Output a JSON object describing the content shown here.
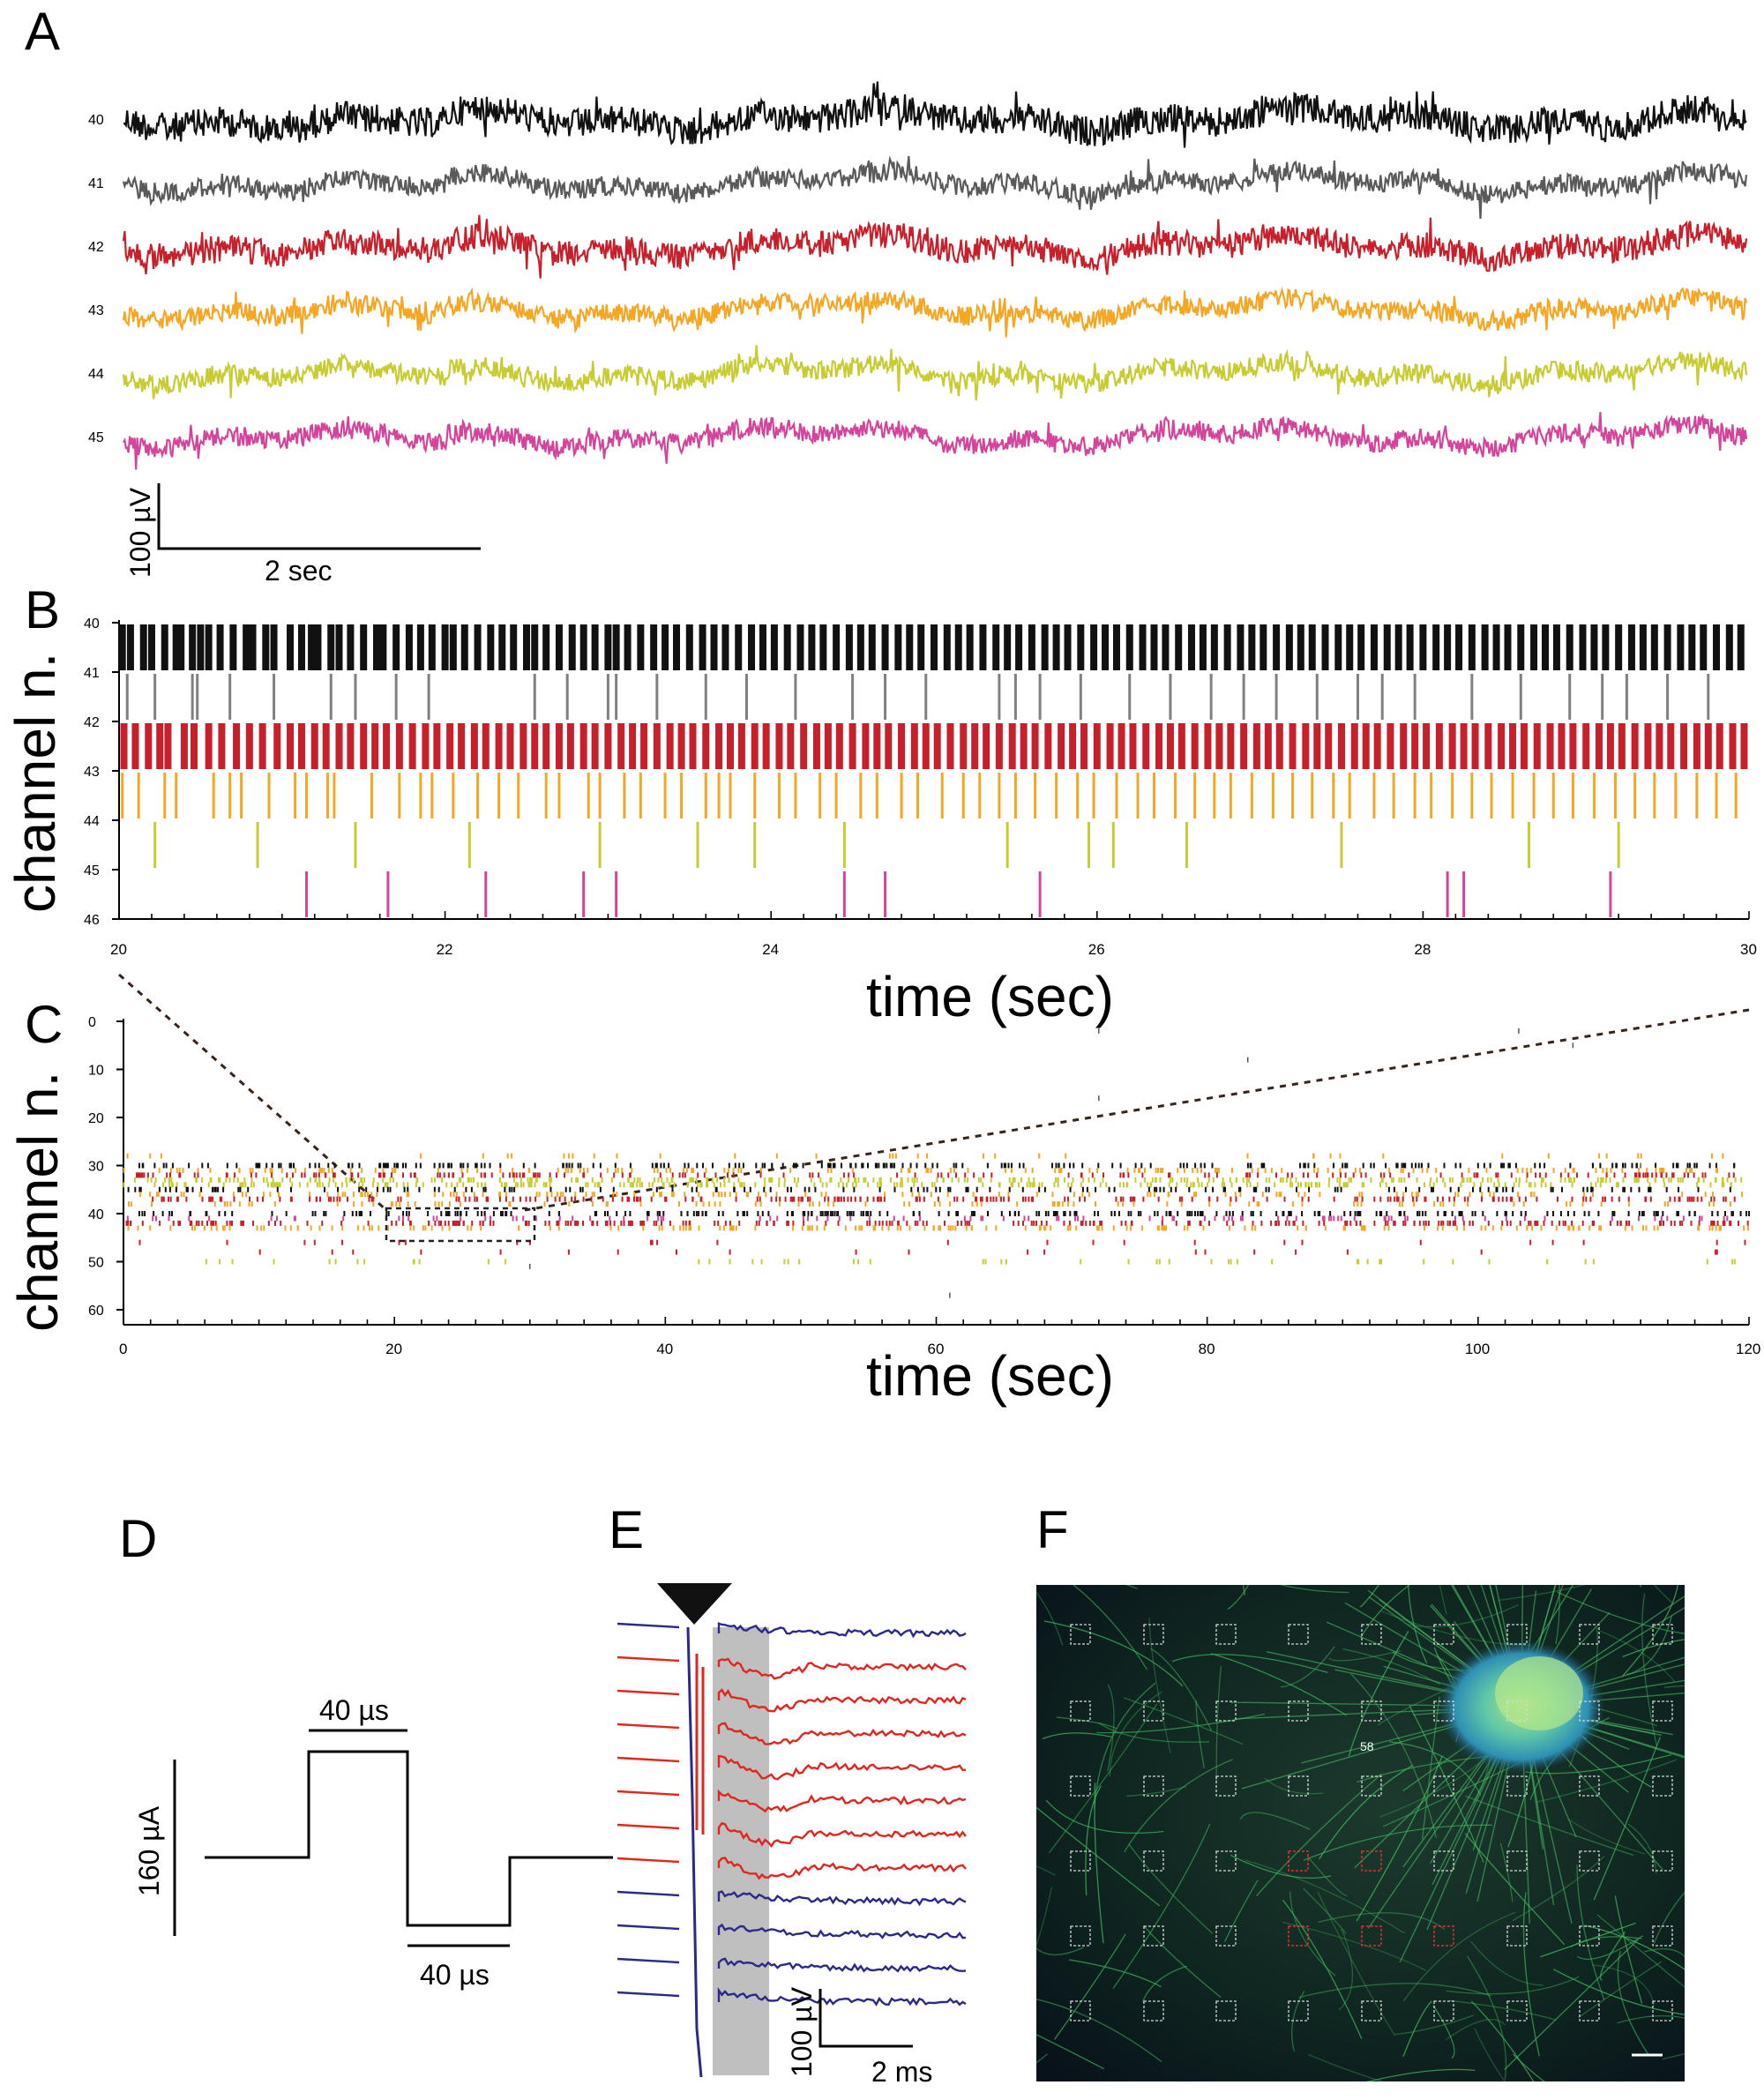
{
  "panels": {
    "A": {
      "letter": "A",
      "channels": [
        "40",
        "41",
        "42",
        "43",
        "44",
        "45"
      ],
      "colors": [
        "#111111",
        "#5a5a5a",
        "#c8202a",
        "#f5a623",
        "#c8cc32",
        "#d4449c"
      ],
      "scale_y": "100 µV",
      "scale_x": "2 sec"
    },
    "B": {
      "letter": "B",
      "ylabel": "channel n.",
      "xlabel": "time (sec)",
      "y_ticks": [
        "40",
        "41",
        "42",
        "43",
        "44",
        "45",
        "46"
      ],
      "x_ticks": [
        "20",
        "22",
        "24",
        "26",
        "28",
        "30"
      ]
    },
    "C": {
      "letter": "C",
      "ylabel": "channel n.",
      "xlabel": "time (sec)",
      "y_ticks": [
        "0",
        "10",
        "20",
        "30",
        "40",
        "50",
        "60"
      ],
      "x_ticks": [
        "0",
        "20",
        "40",
        "60",
        "80",
        "100",
        "120"
      ]
    },
    "D": {
      "letter": "D",
      "top_duration": "40 µs",
      "bottom_duration": "40 µs",
      "amplitude": "160 µA"
    },
    "E": {
      "letter": "E",
      "scale_y": "100 µV",
      "scale_x": "2 ms"
    },
    "F": {
      "letter": "F",
      "electrode_label": "58"
    }
  },
  "chart_data": [
    {
      "type": "line",
      "panel": "A",
      "series": [
        {
          "name": "40",
          "color": "#111111"
        },
        {
          "name": "41",
          "color": "#5a5a5a"
        },
        {
          "name": "42",
          "color": "#c8202a"
        },
        {
          "name": "43",
          "color": "#f5a623"
        },
        {
          "name": "44",
          "color": "#c8cc32"
        },
        {
          "name": "45",
          "color": "#d4449c"
        }
      ]
    },
    {
      "type": "scatter",
      "panel": "B",
      "xlabel": "time (sec)",
      "ylabel": "channel n.",
      "xlim": [
        20,
        30
      ],
      "ylim": [
        40,
        46
      ],
      "series": [
        {
          "name": "40",
          "color": "#111111",
          "times": [
            20.02,
            20.07,
            20.15,
            20.2,
            20.28,
            20.35,
            20.38,
            20.45,
            20.5,
            20.55,
            20.62,
            20.7,
            20.78,
            20.82,
            20.9,
            20.95,
            21.05,
            21.12,
            21.18,
            21.22,
            21.3,
            21.35,
            21.42,
            21.5,
            21.58,
            21.62,
            21.7,
            21.78,
            21.85,
            21.92,
            22.0,
            22.05,
            22.12,
            22.2,
            22.28,
            22.35,
            22.42,
            22.5,
            22.55,
            22.62,
            22.7,
            22.78,
            22.85,
            22.92,
            23.0,
            23.05,
            23.12,
            23.2,
            23.28,
            23.35,
            23.42,
            23.5,
            23.58,
            23.65,
            23.72,
            23.8,
            23.88,
            23.95,
            24.02,
            24.1,
            24.18,
            24.25,
            24.32,
            24.4,
            24.48,
            24.55,
            24.62,
            24.7,
            24.78,
            24.85,
            24.92,
            25.0,
            25.08,
            25.15,
            25.22,
            25.3,
            25.38,
            25.45,
            25.52,
            25.6,
            25.68,
            25.75,
            25.82,
            25.9,
            25.98,
            26.05,
            26.12,
            26.2,
            26.28,
            26.35,
            26.42,
            26.5,
            26.58,
            26.65,
            26.72,
            26.8,
            26.88,
            26.95,
            27.02,
            27.1,
            27.18,
            27.25,
            27.32,
            27.4,
            27.48,
            27.55,
            27.62,
            27.7,
            27.78,
            27.85,
            27.92,
            28.0,
            28.08,
            28.15,
            28.22,
            28.3,
            28.38,
            28.45,
            28.52,
            28.6,
            28.68,
            28.75,
            28.82,
            28.9,
            28.98,
            29.05,
            29.12,
            29.2,
            29.28,
            29.35,
            29.42,
            29.5,
            29.58,
            29.65,
            29.72,
            29.8,
            29.88,
            29.95
          ]
        },
        {
          "name": "41",
          "color": "#808080",
          "times": [
            20.05,
            20.22,
            20.45,
            20.48,
            20.68,
            20.95,
            21.3,
            21.45,
            21.7,
            21.9,
            22.55,
            22.75,
            23.0,
            23.05,
            23.3,
            23.6,
            23.85,
            24.15,
            24.5,
            24.7,
            24.95,
            25.4,
            25.5,
            25.65,
            25.9,
            26.2,
            26.45,
            26.7,
            26.9,
            27.1,
            27.35,
            27.6,
            27.75,
            27.95,
            28.3,
            28.6,
            28.9,
            29.1,
            29.25,
            29.5,
            29.75
          ]
        },
        {
          "name": "42",
          "color": "#c8202a",
          "times": [
            20.03,
            20.1,
            20.18,
            20.25,
            20.3,
            20.4,
            20.46,
            20.55,
            20.63,
            20.72,
            20.8,
            20.88,
            20.97,
            21.05,
            21.12,
            21.2,
            21.27,
            21.35,
            21.42,
            21.5,
            21.57,
            21.64,
            21.72,
            21.8,
            21.88,
            21.95,
            22.03,
            22.1,
            22.18,
            22.25,
            22.33,
            22.4,
            22.48,
            22.55,
            22.62,
            22.7,
            22.77,
            22.85,
            22.92,
            23.0,
            23.08,
            23.15,
            23.22,
            23.3,
            23.38,
            23.45,
            23.52,
            23.6,
            23.68,
            23.75,
            23.82,
            23.9,
            23.97,
            24.05,
            24.12,
            24.2,
            24.28,
            24.35,
            24.42,
            24.5,
            24.58,
            24.65,
            24.72,
            24.8,
            24.88,
            24.95,
            25.02,
            25.1,
            25.18,
            25.25,
            25.32,
            25.4,
            25.48,
            25.55,
            25.62,
            25.7,
            25.78,
            25.85,
            25.92,
            26.0,
            26.08,
            26.15,
            26.22,
            26.3,
            26.38,
            26.45,
            26.52,
            26.6,
            26.68,
            26.75,
            26.82,
            26.9,
            26.98,
            27.05,
            27.12,
            27.2,
            27.28,
            27.35,
            27.42,
            27.5,
            27.58,
            27.65,
            27.72,
            27.8,
            27.88,
            27.95,
            28.02,
            28.1,
            28.18,
            28.25,
            28.32,
            28.4,
            28.48,
            28.55,
            28.62,
            28.7,
            28.78,
            28.85,
            28.92,
            29.0,
            29.08,
            29.15,
            29.22,
            29.3,
            29.38,
            29.45,
            29.52,
            29.6,
            29.68,
            29.75,
            29.82,
            29.9,
            29.97
          ]
        },
        {
          "name": "43",
          "color": "#f5a623",
          "times": [
            20.02,
            20.12,
            20.28,
            20.35,
            20.58,
            20.68,
            20.75,
            20.92,
            21.08,
            21.15,
            21.28,
            21.32,
            21.55,
            21.72,
            21.85,
            21.92,
            22.05,
            22.2,
            22.33,
            22.45,
            22.62,
            22.7,
            22.88,
            22.95,
            23.1,
            23.2,
            23.35,
            23.45,
            23.6,
            23.68,
            23.75,
            23.9,
            24.05,
            24.15,
            24.3,
            24.4,
            24.55,
            24.65,
            24.8,
            24.9,
            25.05,
            25.18,
            25.28,
            25.4,
            25.5,
            25.62,
            25.75,
            25.88,
            25.98,
            26.12,
            26.25,
            26.35,
            26.48,
            26.6,
            26.72,
            26.82,
            26.95,
            27.08,
            27.2,
            27.32,
            27.45,
            27.55,
            27.7,
            27.82,
            27.95,
            28.05,
            28.18,
            28.3,
            28.42,
            28.55,
            28.68,
            28.8,
            28.92,
            29.05,
            29.18,
            29.3,
            29.42,
            29.55,
            29.68,
            29.8,
            29.92
          ]
        },
        {
          "name": "44",
          "color": "#c8cc32",
          "times": [
            20.22,
            20.85,
            21.45,
            22.15,
            22.95,
            23.55,
            23.9,
            24.45,
            25.45,
            25.95,
            26.1,
            26.55,
            27.5,
            28.65,
            29.2
          ]
        },
        {
          "name": "45",
          "color": "#d4449c",
          "times": [
            21.15,
            21.65,
            22.25,
            22.85,
            23.05,
            24.45,
            24.7,
            25.65,
            28.15,
            28.25,
            29.15
          ]
        }
      ]
    },
    {
      "type": "scatter",
      "panel": "C",
      "xlabel": "time (sec)",
      "ylabel": "channel n.",
      "xlim": [
        0,
        120
      ],
      "ylim": [
        0,
        60
      ]
    }
  ]
}
